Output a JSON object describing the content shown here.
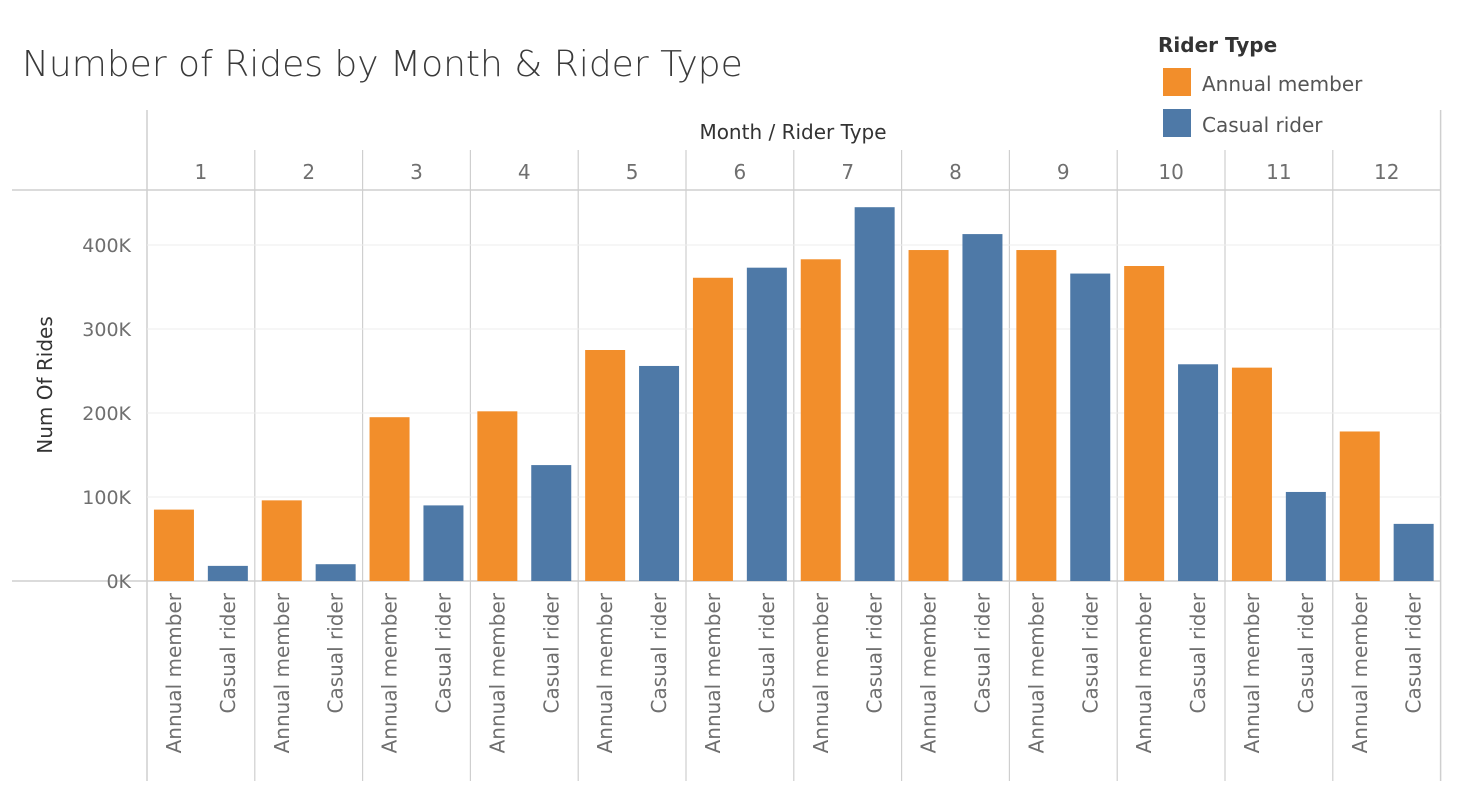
{
  "chart_data": {
    "type": "bar",
    "title": "Number of Rides by Month & Rider Type",
    "header": "Month  /  Rider Type",
    "ylabel": "Num Of Rides",
    "ylim": [
      0,
      450000
    ],
    "yticks": [
      0,
      100000,
      200000,
      300000,
      400000
    ],
    "ytick_labels": [
      "0K",
      "100K",
      "200K",
      "300K",
      "400K"
    ],
    "months": [
      "1",
      "2",
      "3",
      "4",
      "5",
      "6",
      "7",
      "8",
      "9",
      "10",
      "11",
      "12"
    ],
    "subcategories": [
      "Annual member",
      "Casual rider"
    ],
    "grid": true,
    "legend": {
      "title": "Rider Type",
      "placement": "top-right"
    },
    "series": [
      {
        "name": "Annual member",
        "color": "#f28e2b",
        "values": [
          85000,
          96000,
          195000,
          202000,
          275000,
          361000,
          383000,
          394000,
          394000,
          375000,
          254000,
          178000
        ]
      },
      {
        "name": "Casual rider",
        "color": "#4e79a7",
        "values": [
          18000,
          20000,
          90000,
          138000,
          256000,
          373000,
          445000,
          413000,
          366000,
          258000,
          106000,
          68000
        ]
      }
    ]
  }
}
